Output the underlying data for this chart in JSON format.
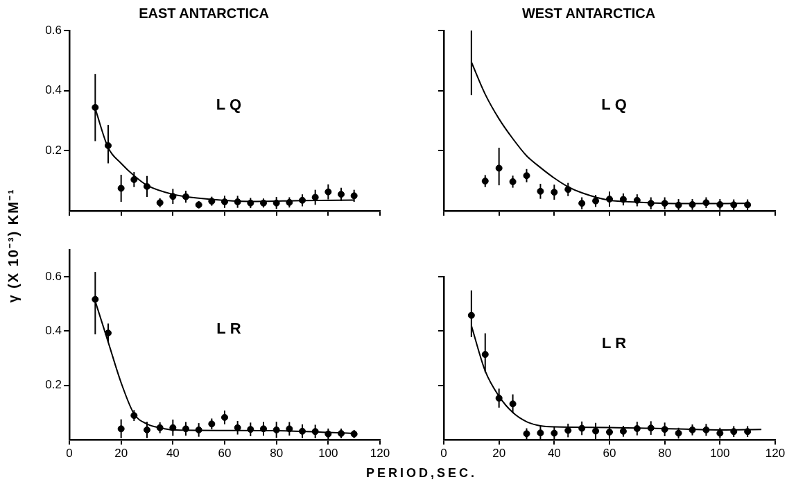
{
  "chart_data": [
    {
      "type": "scatter",
      "title": "EAST ANTARCTICA",
      "ylabel": "γ (X 10⁻³) KM⁻¹",
      "annotations": [
        "LQ"
      ],
      "xlim": [
        0,
        120
      ],
      "ylim": [
        0,
        0.6
      ],
      "xticks": [
        0,
        20,
        40,
        60,
        80,
        100,
        120
      ],
      "yticks": [
        0.2,
        0.4,
        0.6
      ],
      "tick_labels": "y",
      "grid": false,
      "legend": false,
      "marker": "circle",
      "x": [
        10,
        15,
        20,
        25,
        30,
        35,
        40,
        45,
        50,
        55,
        60,
        65,
        70,
        75,
        80,
        85,
        90,
        95,
        100,
        105,
        110
      ],
      "series": [
        {
          "color": "#000000",
          "values": [
            0.344,
            0.217,
            0.075,
            0.104,
            0.081,
            0.027,
            0.048,
            0.047,
            0.02,
            0.032,
            0.03,
            0.03,
            0.026,
            0.026,
            0.026,
            0.028,
            0.035,
            0.045,
            0.063,
            0.055,
            0.05
          ],
          "errors": [
            [
              0.232,
              0.455
            ],
            [
              0.158,
              0.286
            ],
            0.045,
            0.025,
            0.035,
            0.015,
            0.025,
            0.02,
            0.012,
            0.015,
            0.02,
            0.02,
            0.017,
            0.015,
            0.02,
            0.017,
            0.02,
            0.025,
            0.025,
            0.022,
            0.02
          ]
        },
        {
          "type": "line",
          "marker": "none",
          "color": "#000000",
          "x": [
            10,
            15,
            20,
            25,
            30,
            40,
            55,
            70,
            90,
            110
          ],
          "values": [
            0.34,
            0.21,
            0.158,
            0.117,
            0.085,
            0.055,
            0.038,
            0.031,
            0.034,
            0.036
          ]
        }
      ]
    },
    {
      "type": "scatter",
      "title": "WEST ANTARCTICA",
      "annotations": [
        "LQ"
      ],
      "xlim": [
        0,
        120
      ],
      "ylim": [
        0,
        0.6
      ],
      "xticks": [
        0,
        20,
        40,
        60,
        80,
        100,
        120
      ],
      "yticks": [
        0.2,
        0.4,
        0.6
      ],
      "tick_labels": false,
      "grid": false,
      "legend": false,
      "marker": "circle",
      "x": [
        15,
        20,
        25,
        30,
        35,
        40,
        45,
        50,
        55,
        60,
        65,
        70,
        75,
        80,
        85,
        90,
        95,
        100,
        105,
        110
      ],
      "series": [
        {
          "color": "#000000",
          "values": [
            0.099,
            0.142,
            0.097,
            0.117,
            0.065,
            0.062,
            0.071,
            0.025,
            0.033,
            0.039,
            0.038,
            0.035,
            0.025,
            0.025,
            0.019,
            0.021,
            0.027,
            0.021,
            0.02,
            0.02
          ],
          "errors": [
            0.02,
            [
              0.085,
              0.21
            ],
            0.02,
            0.022,
            0.025,
            0.025,
            0.022,
            0.02,
            0.02,
            0.025,
            0.02,
            0.02,
            0.02,
            0.02,
            0.02,
            0.018,
            0.018,
            0.018,
            0.018,
            0.018
          ]
        },
        {
          "type": "line",
          "marker": "none",
          "color": "#000000",
          "x": [
            10,
            15,
            20,
            25,
            30,
            35,
            40,
            45,
            50,
            60,
            70,
            80,
            100,
            110
          ],
          "values": [
            0.495,
            0.388,
            0.306,
            0.24,
            0.183,
            0.144,
            0.109,
            0.08,
            0.06,
            0.035,
            0.029,
            0.025,
            0.024,
            0.025
          ],
          "errors": [
            [
              0.385,
              0.6
            ],
            null,
            null,
            null,
            null,
            null,
            null,
            null,
            null,
            null,
            null,
            null,
            null,
            null
          ]
        }
      ]
    },
    {
      "type": "scatter",
      "xlabel": "PERIOD,SEC.",
      "annotations": [
        "LR"
      ],
      "xlim": [
        0,
        120
      ],
      "ylim": [
        0,
        0.7
      ],
      "xticks": [
        0,
        20,
        40,
        60,
        80,
        100,
        120
      ],
      "yticks": [
        0.2,
        0.4,
        0.6
      ],
      "grid": false,
      "legend": false,
      "marker": "circle",
      "x": [
        10,
        15,
        20,
        25,
        30,
        35,
        40,
        45,
        50,
        55,
        60,
        65,
        70,
        75,
        80,
        85,
        90,
        95,
        100,
        105,
        110
      ],
      "series": [
        {
          "color": "#000000",
          "values": [
            0.517,
            0.393,
            0.04,
            0.089,
            0.036,
            0.044,
            0.044,
            0.04,
            0.036,
            0.058,
            0.082,
            0.044,
            0.038,
            0.04,
            0.036,
            0.04,
            0.031,
            0.03,
            0.021,
            0.023,
            0.021
          ],
          "errors": [
            [
              0.388,
              0.618
            ],
            0.035,
            0.035,
            0.02,
            0.03,
            0.02,
            0.03,
            0.025,
            0.025,
            0.02,
            0.025,
            0.025,
            0.025,
            0.025,
            0.03,
            0.025,
            0.025,
            0.025,
            0.02,
            0.018,
            0.015
          ]
        },
        {
          "type": "line",
          "marker": "none",
          "color": "#000000",
          "x": [
            10,
            15,
            20,
            25,
            30,
            35,
            40,
            60,
            80,
            100,
            110
          ],
          "values": [
            0.51,
            0.36,
            0.21,
            0.095,
            0.058,
            0.044,
            0.036,
            0.034,
            0.033,
            0.027,
            0.023
          ]
        }
      ]
    },
    {
      "type": "scatter",
      "annotations": [
        "LR"
      ],
      "xlim": [
        0,
        120
      ],
      "ylim": [
        0,
        0.6
      ],
      "xticks": [
        0,
        20,
        40,
        60,
        80,
        100,
        120
      ],
      "yticks": [
        0.2,
        0.4,
        0.6
      ],
      "tick_labels": "x",
      "grid": false,
      "legend": false,
      "marker": "circle",
      "x": [
        10,
        15,
        20,
        25,
        30,
        35,
        40,
        45,
        50,
        55,
        60,
        65,
        70,
        75,
        80,
        85,
        90,
        95,
        100,
        105,
        110
      ],
      "series": [
        {
          "color": "#000000",
          "values": [
            0.458,
            0.314,
            0.153,
            0.132,
            0.022,
            0.025,
            0.024,
            0.034,
            0.042,
            0.032,
            0.028,
            0.031,
            0.041,
            0.043,
            0.038,
            0.024,
            0.036,
            0.036,
            0.024,
            0.03,
            0.03
          ],
          "errors": [
            [
              0.378,
              0.55
            ],
            [
              0.248,
              0.392
            ],
            0.035,
            0.035,
            0.02,
            0.025,
            0.025,
            0.025,
            0.025,
            0.03,
            0.025,
            0.02,
            0.025,
            0.025,
            0.025,
            0.02,
            0.02,
            0.022,
            0.02,
            0.02,
            0.02
          ]
        },
        {
          "type": "line",
          "marker": "none",
          "color": "#000000",
          "x": [
            10,
            15,
            20,
            25,
            30,
            35,
            40,
            60,
            80,
            100,
            115
          ],
          "values": [
            0.42,
            0.253,
            0.16,
            0.1,
            0.066,
            0.051,
            0.047,
            0.045,
            0.041,
            0.036,
            0.038
          ]
        }
      ]
    }
  ]
}
